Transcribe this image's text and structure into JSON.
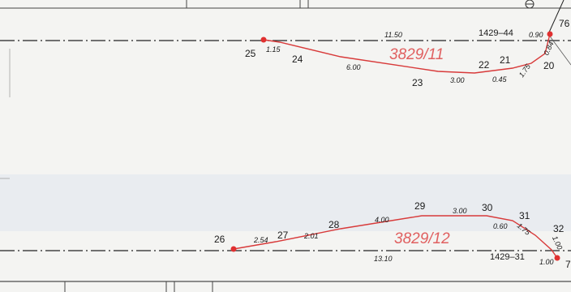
{
  "upper_parcel": {
    "parcel_id": "3829/11",
    "reference": "1429–44",
    "points": [
      "25",
      "24",
      "23",
      "22",
      "21",
      "20",
      "76"
    ],
    "measurements": [
      "11.50",
      "1.15",
      "6.00",
      "3.00",
      "0.45",
      "1.75",
      "0.84",
      "0.90"
    ]
  },
  "lower_parcel": {
    "parcel_id": "3829/12",
    "reference": "1429–31",
    "points": [
      "26",
      "27",
      "28",
      "29",
      "30",
      "31",
      "32",
      "7"
    ],
    "measurements": [
      "2.54",
      "2.01",
      "4.00",
      "3.00",
      "0.60",
      "1.75",
      "1.00",
      "13.10",
      "1.00"
    ]
  },
  "colors": {
    "boundary": "#d83a3a",
    "parcel_label": "#e06060",
    "lines": "#222222",
    "paper": "#f4f4f2"
  }
}
